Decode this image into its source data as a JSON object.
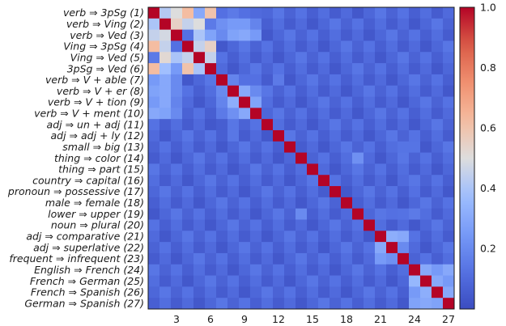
{
  "chart_data": {
    "type": "heatmap",
    "title": "",
    "xlabel": "",
    "ylabel": "",
    "row_labels": [
      "verb ⇒ 3pSg (1)",
      "verb ⇒ Ving (2)",
      "verb ⇒ Ved (3)",
      "Ving ⇒ 3pSg (4)",
      "Ving ⇒ Ved (5)",
      "3pSg ⇒ Ved (6)",
      "verb ⇒ V + able (7)",
      "verb ⇒ V + er (8)",
      "verb ⇒ V + tion (9)",
      "verb ⇒ V + ment (10)",
      "adj ⇒ un + adj (11)",
      "adj ⇒ adj + ly (12)",
      "small ⇒ big (13)",
      "thing ⇒ color (14)",
      "thing ⇒ part (15)",
      "country ⇒ capital (16)",
      "pronoun ⇒ possessive (17)",
      "male ⇒ female (18)",
      "lower ⇒ upper (19)",
      "noun ⇒ plural (20)",
      "adj ⇒ comparative (21)",
      "adj ⇒ superlative (22)",
      "frequent ⇒ infrequent (23)",
      "English ⇒ French (24)",
      "French ⇒ German (25)",
      "French ⇒ Spanish (26)",
      "German ⇒ Spanish (27)"
    ],
    "x_ticks": [
      "3",
      "6",
      "9",
      "12",
      "15",
      "18",
      "21",
      "24",
      "27"
    ],
    "x_tick_positions": [
      3,
      6,
      9,
      12,
      15,
      18,
      21,
      24,
      27
    ],
    "colorbar": {
      "range": [
        0.0,
        1.0
      ],
      "ticks": [
        "0.2",
        "0.4",
        "0.6",
        "0.8",
        "1.0"
      ],
      "tick_values": [
        0.2,
        0.4,
        0.6,
        0.8,
        1.0
      ],
      "colormap": "coolwarm"
    },
    "base_value": 0.04,
    "cells": [
      [
        1,
        2,
        0.42
      ],
      [
        1,
        3,
        0.5
      ],
      [
        1,
        4,
        0.62
      ],
      [
        1,
        5,
        0.3
      ],
      [
        1,
        6,
        0.6
      ],
      [
        1,
        7,
        0.12
      ],
      [
        1,
        8,
        0.15
      ],
      [
        1,
        9,
        0.12
      ],
      [
        1,
        10,
        0.1
      ],
      [
        2,
        1,
        0.4
      ],
      [
        2,
        3,
        0.55
      ],
      [
        2,
        4,
        0.45
      ],
      [
        2,
        5,
        0.5
      ],
      [
        2,
        6,
        0.15
      ],
      [
        2,
        7,
        0.22
      ],
      [
        2,
        8,
        0.25
      ],
      [
        2,
        9,
        0.25
      ],
      [
        2,
        10,
        0.18
      ],
      [
        3,
        1,
        0.45
      ],
      [
        3,
        2,
        0.48
      ],
      [
        3,
        4,
        0.12
      ],
      [
        3,
        5,
        0.4
      ],
      [
        3,
        6,
        0.28
      ],
      [
        3,
        7,
        0.2
      ],
      [
        3,
        8,
        0.28
      ],
      [
        3,
        9,
        0.3
      ],
      [
        3,
        10,
        0.25
      ],
      [
        4,
        1,
        0.62
      ],
      [
        4,
        2,
        0.45
      ],
      [
        4,
        3,
        0.12
      ],
      [
        4,
        5,
        0.45
      ],
      [
        4,
        6,
        0.55
      ],
      [
        5,
        1,
        0.15
      ],
      [
        5,
        2,
        0.52
      ],
      [
        5,
        3,
        0.4
      ],
      [
        5,
        4,
        0.45
      ],
      [
        5,
        6,
        0.45
      ],
      [
        6,
        1,
        0.62
      ],
      [
        6,
        2,
        0.38
      ],
      [
        6,
        3,
        0.25
      ],
      [
        6,
        4,
        0.6
      ],
      [
        6,
        5,
        0.4
      ],
      [
        6,
        7,
        0.1
      ],
      [
        7,
        1,
        0.25
      ],
      [
        7,
        2,
        0.3
      ],
      [
        7,
        3,
        0.2
      ],
      [
        7,
        8,
        0.18
      ],
      [
        7,
        9,
        0.12
      ],
      [
        7,
        10,
        0.12
      ],
      [
        7,
        12,
        0.15
      ],
      [
        8,
        1,
        0.28
      ],
      [
        8,
        2,
        0.3
      ],
      [
        8,
        3,
        0.2
      ],
      [
        8,
        7,
        0.2
      ],
      [
        8,
        9,
        0.3
      ],
      [
        8,
        10,
        0.2
      ],
      [
        9,
        1,
        0.25
      ],
      [
        9,
        2,
        0.3
      ],
      [
        9,
        3,
        0.18
      ],
      [
        9,
        7,
        0.18
      ],
      [
        9,
        8,
        0.32
      ],
      [
        9,
        10,
        0.28
      ],
      [
        10,
        1,
        0.3
      ],
      [
        10,
        2,
        0.28
      ],
      [
        10,
        3,
        0.2
      ],
      [
        10,
        7,
        0.15
      ],
      [
        10,
        8,
        0.22
      ],
      [
        10,
        9,
        0.3
      ],
      [
        12,
        8,
        0.14
      ],
      [
        14,
        19,
        0.22
      ],
      [
        19,
        14,
        0.2
      ],
      [
        19,
        22,
        0.12
      ],
      [
        19,
        24,
        0.15
      ],
      [
        21,
        22,
        0.32
      ],
      [
        21,
        23,
        0.3
      ],
      [
        22,
        21,
        0.3
      ],
      [
        22,
        23,
        0.2
      ],
      [
        23,
        21,
        0.25
      ],
      [
        23,
        22,
        0.22
      ],
      [
        24,
        25,
        0.3
      ],
      [
        24,
        26,
        0.25
      ],
      [
        24,
        27,
        0.3
      ],
      [
        25,
        24,
        0.35
      ],
      [
        25,
        26,
        0.3
      ],
      [
        25,
        27,
        0.25
      ],
      [
        26,
        24,
        0.25
      ],
      [
        26,
        25,
        0.32
      ],
      [
        26,
        27,
        0.3
      ],
      [
        27,
        24,
        0.28
      ],
      [
        27,
        25,
        0.3
      ],
      [
        27,
        26,
        0.28
      ],
      [
        13,
        23,
        0.13
      ],
      [
        13,
        24,
        0.13
      ],
      [
        11,
        7,
        0.06
      ],
      [
        15,
        9,
        0.08
      ],
      [
        16,
        23,
        0.1
      ],
      [
        17,
        24,
        0.12
      ]
    ]
  }
}
